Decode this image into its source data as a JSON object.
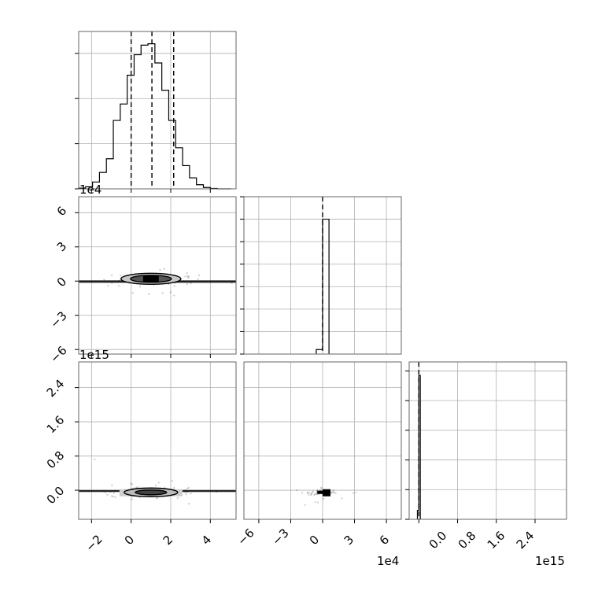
{
  "chart_data": [
    {
      "type": "histogram",
      "panel": "param-1-marginal",
      "bins": [
        -2.65,
        -2.3,
        -1.95,
        -1.6,
        -1.25,
        -0.9,
        -0.55,
        -0.2,
        0.15,
        0.5,
        0.85,
        1.2,
        1.55,
        1.9,
        2.25,
        2.6,
        2.95,
        3.3,
        3.65,
        4.0,
        4.35,
        4.7,
        5.05
      ],
      "counts": [
        0.5,
        1.5,
        5,
        12,
        22,
        50,
        62,
        83,
        98,
        105,
        106,
        92,
        72,
        50,
        30,
        17,
        8,
        3,
        1,
        0.3,
        0,
        0
      ],
      "quantiles": [
        0.0,
        1.05,
        2.15
      ],
      "xlim": [
        -2.65,
        5.3
      ],
      "ylim": [
        0,
        115
      ],
      "ytick_values": [
        0,
        33,
        66,
        99
      ]
    },
    {
      "type": "scatter-contour",
      "panel": "param-2-vs-param-1",
      "x_ticks": [
        -2,
        0,
        2,
        4
      ],
      "y_ticks": [
        "6",
        "3",
        "0",
        "−3",
        "−6"
      ],
      "y_tick_values": [
        6,
        3,
        0,
        -3,
        -6
      ],
      "y_offset_label": "1e4",
      "xlim": [
        -2.65,
        5.3
      ],
      "ylim": [
        -6.4,
        7.4
      ],
      "center": [
        1.0,
        0.2
      ]
    },
    {
      "type": "histogram",
      "panel": "param-2-marginal",
      "bins": [
        -0.6,
        0.0,
        0.6
      ],
      "counts": [
        5,
        150
      ],
      "quantiles": [
        0.0
      ],
      "xlim": [
        -7.4,
        7.4
      ],
      "ylim": [
        0,
        175
      ],
      "ytick_values": [
        0,
        25,
        50,
        75,
        100,
        125,
        150,
        175
      ]
    },
    {
      "type": "scatter-contour",
      "panel": "param-3-vs-param-1",
      "y_ticks": [
        "2.4",
        "1.6",
        "0.8",
        "0.0"
      ],
      "y_tick_values": [
        2.4,
        1.6,
        0.8,
        0.0
      ],
      "y_offset_label": "1e15",
      "xlim": [
        -2.65,
        5.3
      ],
      "ylim": [
        -0.68,
        3.0
      ],
      "center": [
        1.0,
        -0.05
      ]
    },
    {
      "type": "scatter",
      "panel": "param-3-vs-param-2",
      "x_ticks": [
        "−6",
        "−3",
        "0",
        "3",
        "6"
      ],
      "x_tick_values": [
        -6,
        -3,
        0,
        3,
        6
      ],
      "x_offset_label": "1e4",
      "xlim": [
        -7.4,
        7.4
      ],
      "ylim": [
        -0.68,
        3.0
      ]
    },
    {
      "type": "histogram",
      "panel": "param-3-marginal",
      "bins": [
        -0.03,
        0.0,
        0.03
      ],
      "counts": [
        10,
        160
      ],
      "quantiles": [
        0.0
      ],
      "x_ticks": [
        "0.0",
        "0.8",
        "1.6",
        "2.4"
      ],
      "x_tick_values": [
        0.0,
        0.8,
        1.6,
        2.4
      ],
      "x_offset_label": "1e15",
      "xlim": [
        -0.2,
        3.05
      ],
      "ylim": [
        0,
        175
      ],
      "ytick_values": [
        0,
        33,
        66,
        99,
        132,
        165
      ]
    }
  ],
  "labels": {
    "x_ticks_p1": [
      "−2",
      "0",
      "2",
      "4"
    ],
    "y_ticks_p2": [
      "6",
      "3",
      "0",
      "−3",
      "−6"
    ],
    "y_ticks_p3": [
      "2.4",
      "1.6",
      "0.8",
      "0.0"
    ],
    "x_ticks_p2": [
      "−6",
      "−3",
      "0",
      "3",
      "6"
    ],
    "x_ticks_p3": [
      "0.0",
      "0.8",
      "1.6",
      "2.4"
    ],
    "offset_p2_y": "1e4",
    "offset_p3_y": "1e15",
    "offset_p2_x": "1e4",
    "offset_p3_x": "1e15"
  }
}
